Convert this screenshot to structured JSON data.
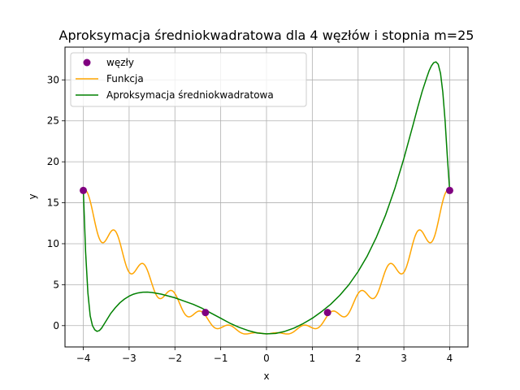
{
  "chart_data": {
    "type": "line",
    "title": "Aproksymacja średniokwadratowa dla 4 węzłów i stopnia m=25",
    "xlabel": "x",
    "ylabel": "y",
    "xlim": [
      -4.4,
      4.4
    ],
    "ylim": [
      -2.6,
      34.0
    ],
    "xticks": [
      -4,
      -3,
      -2,
      -1,
      0,
      1,
      2,
      3,
      4
    ],
    "xtick_labels": [
      "−4",
      "−3",
      "−2",
      "−1",
      "0",
      "1",
      "2",
      "3",
      "4"
    ],
    "yticks": [
      0,
      5,
      10,
      15,
      20,
      25,
      30
    ],
    "ytick_labels": [
      "0",
      "5",
      "10",
      "15",
      "20",
      "25",
      "30"
    ],
    "grid": true,
    "legend_position": "upper-left",
    "series": [
      {
        "name": "węzły",
        "kind": "scatter",
        "color": "#800080",
        "x": [
          -4,
          -1.3333,
          1.3333,
          4
        ],
        "y": [
          16.5,
          1.6,
          1.6,
          16.5
        ]
      },
      {
        "name": "Funkcja",
        "kind": "line",
        "color": "#ffa500",
        "function": "x^2 - 1 + 0.5*x*sin(10x)",
        "x_range": [
          -4,
          4
        ],
        "samples": 600
      },
      {
        "name": "Aproksymacja średniokwadratowa",
        "kind": "line",
        "color": "#008000",
        "x": [
          -4.0,
          -3.95,
          -3.9,
          -3.85,
          -3.8,
          -3.75,
          -3.7,
          -3.65,
          -3.6,
          -3.5,
          -3.4,
          -3.3,
          -3.2,
          -3.1,
          -3.0,
          -2.9,
          -2.8,
          -2.7,
          -2.6,
          -2.5,
          -2.4,
          -2.3,
          -2.2,
          -2.1,
          -2.0,
          -1.8,
          -1.6,
          -1.4,
          -1.2,
          -1.0,
          -0.8,
          -0.6,
          -0.4,
          -0.2,
          0.0,
          0.2,
          0.4,
          0.6,
          0.8,
          1.0,
          1.2,
          1.4,
          1.6,
          1.8,
          2.0,
          2.2,
          2.4,
          2.6,
          2.8,
          3.0,
          3.2,
          3.3,
          3.4,
          3.5,
          3.55,
          3.6,
          3.65,
          3.7,
          3.75,
          3.8,
          3.85,
          3.9,
          3.95,
          4.0
        ],
        "y": [
          16.5,
          9.0,
          4.0,
          1.2,
          0.0,
          -0.5,
          -0.7,
          -0.6,
          -0.3,
          0.6,
          1.5,
          2.2,
          2.8,
          3.25,
          3.6,
          3.85,
          4.0,
          4.08,
          4.1,
          4.05,
          3.95,
          3.85,
          3.7,
          3.55,
          3.4,
          3.0,
          2.6,
          2.1,
          1.5,
          0.9,
          0.3,
          -0.2,
          -0.6,
          -0.9,
          -1.0,
          -0.95,
          -0.7,
          -0.3,
          0.25,
          0.9,
          1.7,
          2.6,
          3.7,
          5.0,
          6.6,
          8.5,
          10.8,
          13.5,
          16.7,
          20.4,
          24.5,
          26.6,
          28.6,
          30.3,
          31.1,
          31.7,
          32.1,
          32.2,
          31.9,
          30.8,
          28.5,
          25.0,
          20.5,
          16.5
        ]
      }
    ]
  }
}
